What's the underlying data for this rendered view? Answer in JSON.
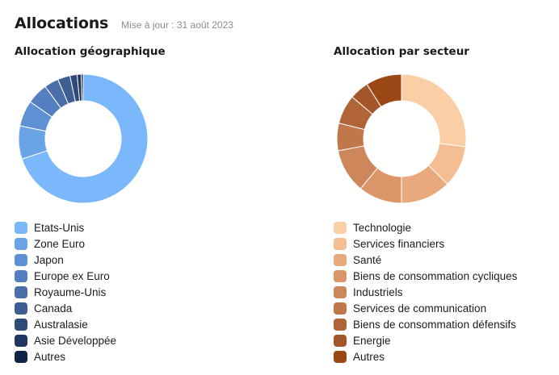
{
  "header": {
    "title": "Allocations",
    "updated": "Mise à jour : 31 août 2023"
  },
  "geo": {
    "title": "Allocation géographique",
    "items": [
      {
        "label": "Etats-Unis",
        "color": "#7ab8fb"
      },
      {
        "label": "Zone Euro",
        "color": "#6aa3e6"
      },
      {
        "label": "Japon",
        "color": "#5e90d4"
      },
      {
        "label": "Europe ex Euro",
        "color": "#5480c2"
      },
      {
        "label": "Royaume-Unis",
        "color": "#4a6fa8"
      },
      {
        "label": "Canada",
        "color": "#3d5e91"
      },
      {
        "label": "Australasie",
        "color": "#2d4a78"
      },
      {
        "label": "Asie Développée",
        "color": "#1e3660"
      },
      {
        "label": "Autres",
        "color": "#102447"
      }
    ]
  },
  "sector": {
    "title": "Allocation par secteur",
    "items": [
      {
        "label": "Technologie",
        "color": "#fbcfa6"
      },
      {
        "label": "Services financiers",
        "color": "#f4bd92"
      },
      {
        "label": "Santé",
        "color": "#e8a97d"
      },
      {
        "label": "Biens de consommation cycliques",
        "color": "#da9568"
      },
      {
        "label": "Industriels",
        "color": "#cd875a"
      },
      {
        "label": "Services de communication",
        "color": "#c0784a"
      },
      {
        "label": "Biens de consommation défensifs",
        "color": "#b06438"
      },
      {
        "label": "Energie",
        "color": "#a55629"
      },
      {
        "label": "Autres",
        "color": "#9c4716"
      }
    ]
  },
  "chart_data": [
    {
      "type": "pie",
      "subtype": "donut",
      "title": "Allocation géographique",
      "categories": [
        "Etats-Unis",
        "Zone Euro",
        "Japon",
        "Europe ex Euro",
        "Royaume-Unis",
        "Canada",
        "Australasie",
        "Asie Développée",
        "Autres"
      ],
      "values": [
        69.9,
        8.3,
        6.5,
        5.3,
        3.6,
        3.1,
        1.8,
        1.0,
        0.5
      ],
      "unit": "%",
      "legend_position": "bottom"
    },
    {
      "type": "pie",
      "subtype": "donut",
      "title": "Allocation par secteur",
      "categories": [
        "Technologie",
        "Services financiers",
        "Santé",
        "Biens de consommation cycliques",
        "Industriels",
        "Services de communication",
        "Biens de consommation défensifs",
        "Energie",
        "Autres"
      ],
      "values": [
        27.0,
        10.4,
        12.6,
        10.9,
        11.1,
        6.9,
        7.3,
        4.8,
        9.0
      ],
      "unit": "%",
      "legend_position": "bottom"
    }
  ]
}
